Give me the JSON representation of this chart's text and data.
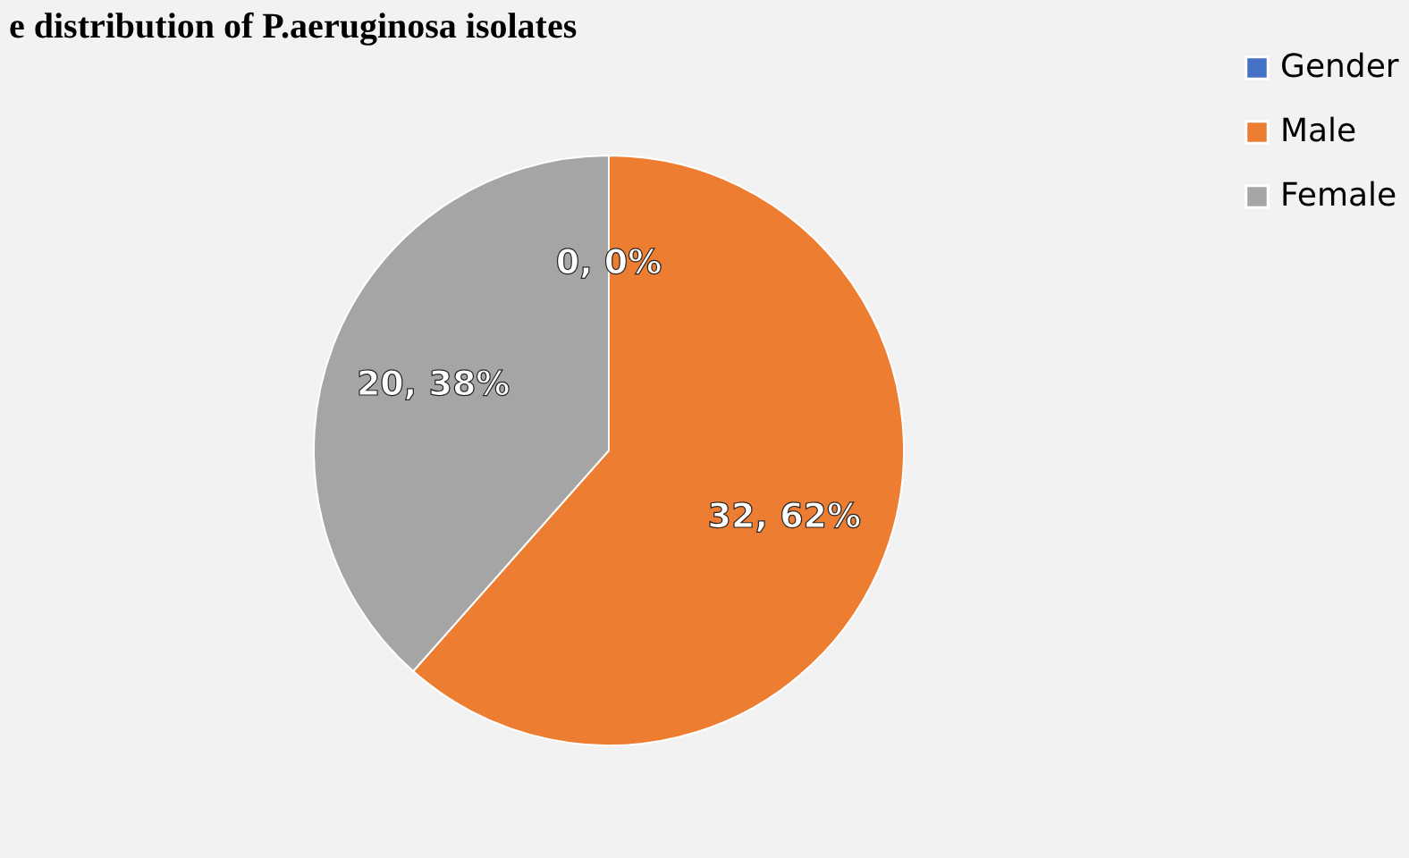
{
  "chart_data": {
    "type": "pie",
    "title": "e distribution of P.aeruginosa isolates",
    "categories": [
      "Gender",
      "Male",
      "Female"
    ],
    "values": [
      0,
      32,
      20
    ],
    "colors": [
      "#4472c4",
      "#ed7d31",
      "#a5a5a5"
    ],
    "value_labels": [
      "0, 0%",
      "32, 62%",
      "20, 38%"
    ],
    "legend": "right"
  }
}
